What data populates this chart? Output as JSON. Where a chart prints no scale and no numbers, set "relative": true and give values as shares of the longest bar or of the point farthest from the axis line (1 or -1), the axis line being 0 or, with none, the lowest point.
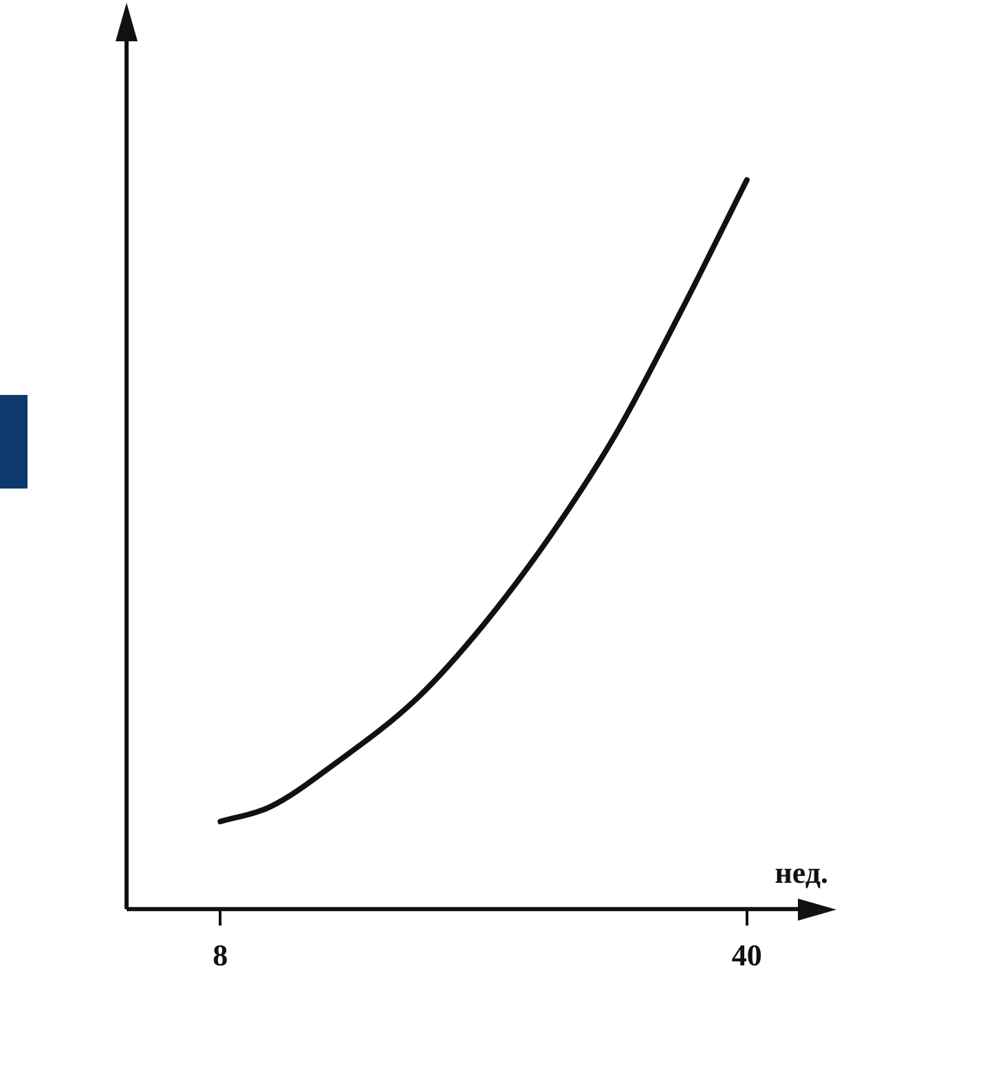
{
  "chart_data": {
    "type": "line",
    "xlabel": "нед.",
    "relative": true,
    "color": "#111111",
    "x": [
      8,
      11,
      15,
      20,
      24,
      28,
      32,
      36,
      40
    ],
    "values": [
      0.12,
      0.14,
      0.2,
      0.29,
      0.39,
      0.51,
      0.65,
      0.82,
      1
    ],
    "xlim": [
      2.3,
      43.1
    ],
    "xticks": [
      8,
      40
    ]
  }
}
